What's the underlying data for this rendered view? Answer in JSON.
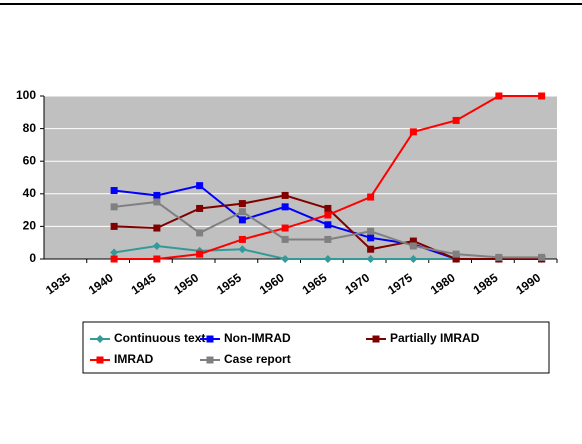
{
  "chart_data": {
    "type": "line",
    "categories": [
      "1935",
      "1940",
      "1945",
      "1950",
      "1955",
      "1960",
      "1965",
      "1970",
      "1975",
      "1980",
      "1985",
      "1990"
    ],
    "series": [
      {
        "name": "Continuous text",
        "color": "#339999",
        "marker": "diamond",
        "values": [
          null,
          4,
          8,
          5,
          6,
          0,
          0,
          0,
          0,
          0,
          0,
          0
        ]
      },
      {
        "name": "Non-IMRAD",
        "color": "#0000ff",
        "marker": "square",
        "values": [
          null,
          42,
          39,
          45,
          24,
          32,
          21,
          13,
          9,
          0,
          0,
          0
        ]
      },
      {
        "name": "Partially IMRAD",
        "color": "#800000",
        "marker": "square",
        "values": [
          null,
          20,
          19,
          31,
          34,
          39,
          31,
          6,
          11,
          0,
          0,
          0
        ]
      },
      {
        "name": "IMRAD",
        "color": "#ff0000",
        "marker": "square",
        "values": [
          null,
          0,
          0,
          3,
          12,
          19,
          27,
          38,
          78,
          85,
          100,
          100
        ]
      },
      {
        "name": "Case report",
        "color": "#808080",
        "marker": "square",
        "values": [
          null,
          32,
          35,
          16,
          29,
          12,
          12,
          17,
          8,
          3,
          1,
          1
        ]
      }
    ],
    "ylim": [
      0,
      100
    ],
    "yticks": [
      0,
      20,
      40,
      60,
      80,
      100
    ],
    "grid": true,
    "legend": "bottom"
  }
}
